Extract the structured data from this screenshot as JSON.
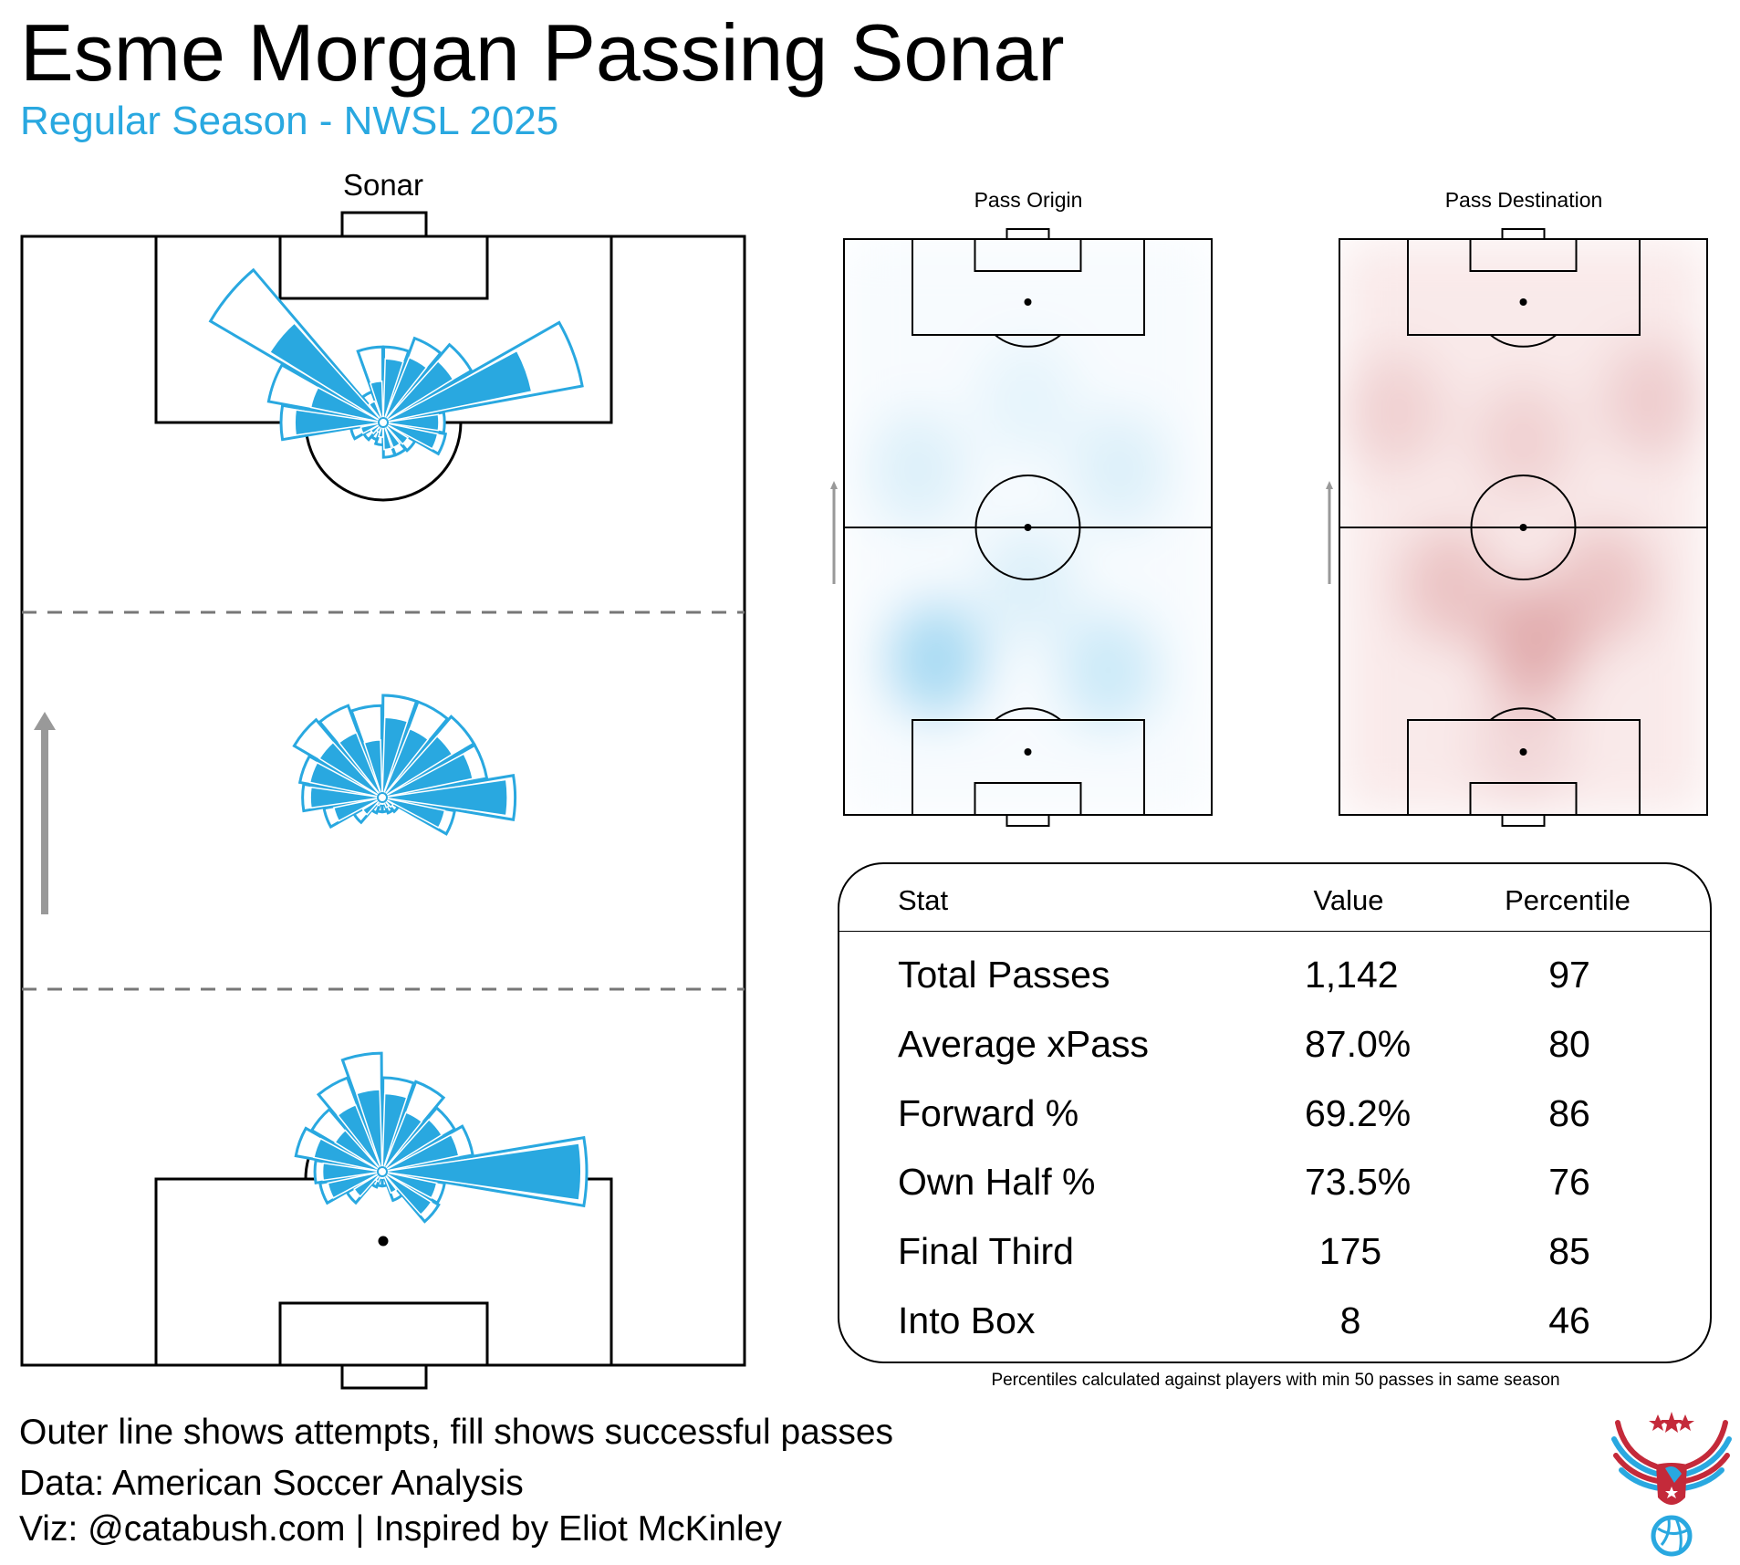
{
  "title": "Esme Morgan Passing Sonar",
  "subtitle": "Regular Season - NWSL 2025",
  "colors": {
    "accent": "#29a8e0",
    "origin_heat": "#4fb8e6",
    "destination_heat": "#c0575c",
    "arrow": "#999999"
  },
  "chart_data": [
    {
      "type": "polar-bar",
      "title": "Sonar",
      "bin_angles_deg": [
        0,
        20,
        40,
        60,
        80,
        100,
        120,
        140,
        160,
        180,
        200,
        220,
        240,
        260,
        280,
        300,
        320,
        340
      ],
      "angle_convention": "0 = toward right touchline, 90 = attacking direction (up)",
      "value_note": "relative length, max 100",
      "zones": [
        {
          "name": "Attacking third",
          "attempts": [
            30,
            99,
            50,
            44,
            37,
            37,
            16,
            98,
            57,
            50,
            16,
            11,
            9,
            11,
            17,
            17,
            18,
            31
          ],
          "successful": [
            29,
            76,
            42,
            36,
            33,
            22,
            13,
            67,
            38,
            45,
            13,
            9,
            7,
            9,
            15,
            15,
            16,
            29
          ]
        },
        {
          "name": "Middle third",
          "attempts": [
            65,
            52,
            52,
            50,
            50,
            45,
            48,
            50,
            41,
            39,
            29,
            16,
            8,
            7,
            7,
            8,
            9,
            36
          ],
          "successful": [
            63,
            47,
            42,
            38,
            41,
            30,
            36,
            38,
            38,
            37,
            26,
            13,
            6,
            5,
            5,
            7,
            8,
            33
          ]
        },
        {
          "name": "Defensive third",
          "attempts": [
            100,
            45,
            41,
            47,
            46,
            58,
            49,
            40,
            43,
            33,
            31,
            20,
            8,
            7,
            7,
            15,
            32,
            31
          ],
          "successful": [
            99,
            40,
            36,
            33,
            40,
            42,
            37,
            29,
            36,
            31,
            29,
            18,
            7,
            5,
            5,
            13,
            30,
            29
          ]
        }
      ]
    },
    {
      "type": "heatmap",
      "title": "Pass Origin",
      "hotspots_note": "density intensity 0-1, location in pitch fractions (0=left/bottom own goal line)",
      "hotspots": [
        {
          "x": 0.25,
          "y": 0.27,
          "intensity": 0.9
        },
        {
          "x": 0.72,
          "y": 0.25,
          "intensity": 0.5
        },
        {
          "x": 0.5,
          "y": 0.4,
          "intensity": 0.3
        },
        {
          "x": 0.2,
          "y": 0.6,
          "intensity": 0.3
        },
        {
          "x": 0.75,
          "y": 0.6,
          "intensity": 0.3
        },
        {
          "x": 0.5,
          "y": 0.72,
          "intensity": 0.2
        }
      ]
    },
    {
      "type": "heatmap",
      "title": "Pass Destination",
      "hotspots": [
        {
          "x": 0.53,
          "y": 0.3,
          "intensity": 0.95
        },
        {
          "x": 0.3,
          "y": 0.4,
          "intensity": 0.6
        },
        {
          "x": 0.72,
          "y": 0.4,
          "intensity": 0.6
        },
        {
          "x": 0.15,
          "y": 0.7,
          "intensity": 0.4
        },
        {
          "x": 0.85,
          "y": 0.72,
          "intensity": 0.45
        },
        {
          "x": 0.5,
          "y": 0.65,
          "intensity": 0.4
        },
        {
          "x": 0.5,
          "y": 0.12,
          "intensity": 0.3
        }
      ]
    }
  ],
  "table": {
    "headers": [
      "Stat",
      "Value",
      "Percentile"
    ],
    "rows": [
      [
        "Total Passes",
        "1,142",
        "97"
      ],
      [
        "Average xPass",
        "87.0%",
        "80"
      ],
      [
        "Forward %",
        "69.2%",
        "86"
      ],
      [
        "Own Half %",
        "73.5%",
        "76"
      ],
      [
        "Final Third",
        "175",
        "85"
      ],
      [
        "Into Box",
        "8",
        "46"
      ]
    ],
    "footnote": "Percentiles calculated against players with min 50 passes in same season"
  },
  "footer": [
    "Outer line shows attempts, fill shows successful passes",
    "Data: American Soccer Analysis",
    "Viz: @catabush.com | Inspired by Eliot McKinley"
  ],
  "logo": {
    "icon": "eagle-volleyball-logo"
  }
}
